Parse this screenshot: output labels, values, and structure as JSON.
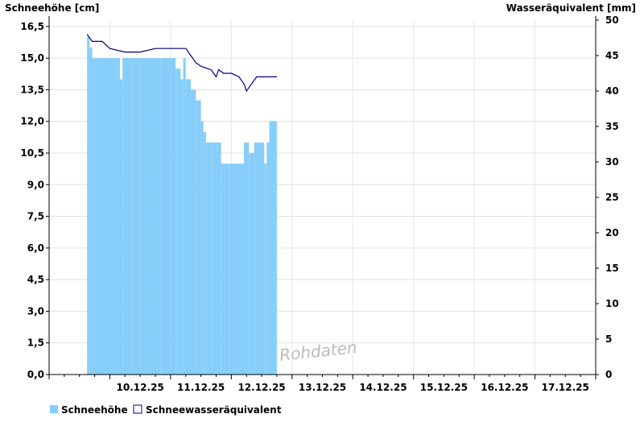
{
  "chart_data": {
    "type": "bar",
    "ylabel_left": "Schneehöhe [cm]",
    "ylabel_right": "Wasseräquivalent [mm]",
    "y_left_range": [
      0,
      16.8
    ],
    "y_right_range": [
      0,
      50
    ],
    "y_left_ticks": [
      "0,0",
      "1,5",
      "3,0",
      "4,5",
      "6,0",
      "7,5",
      "9,0",
      "10,5",
      "12,0",
      "13,5",
      "15,0",
      "16,5"
    ],
    "y_right_ticks": [
      "0",
      "5",
      "10",
      "15",
      "20",
      "25",
      "30",
      "35",
      "40",
      "45",
      "50"
    ],
    "x_range_days": [
      "09.12.25",
      "18.12.25"
    ],
    "x_tick_labels": [
      "10.12.25",
      "11.12.25",
      "12.12.25",
      "13.12.25",
      "14.12.25",
      "15.12.25",
      "16.12.25",
      "17.12.25"
    ],
    "grid": true,
    "series": [
      {
        "name": "Schneehöhe",
        "type": "bar",
        "axis": "left",
        "color": "#87CEFA",
        "points": [
          [
            "09.12.25 15:00",
            16.0
          ],
          [
            "09.12.25 16:00",
            15.5
          ],
          [
            "09.12.25 17:00",
            15.0
          ],
          [
            "09.12.25 18:00",
            15.0
          ],
          [
            "09.12.25 21:00",
            15.0
          ],
          [
            "10.12.25 00:00",
            15.0
          ],
          [
            "10.12.25 03:00",
            15.0
          ],
          [
            "10.12.25 04:00",
            14.0
          ],
          [
            "10.12.25 05:00",
            15.0
          ],
          [
            "10.12.25 09:00",
            15.0
          ],
          [
            "10.12.25 12:00",
            15.0
          ],
          [
            "10.12.25 16:00",
            15.0
          ],
          [
            "10.12.25 20:00",
            15.0
          ],
          [
            "11.12.25 00:00",
            15.0
          ],
          [
            "11.12.25 02:00",
            14.5
          ],
          [
            "11.12.25 04:00",
            14.0
          ],
          [
            "11.12.25 05:00",
            15.0
          ],
          [
            "11.12.25 06:00",
            14.0
          ],
          [
            "11.12.25 08:00",
            13.5
          ],
          [
            "11.12.25 10:00",
            13.0
          ],
          [
            "11.12.25 12:00",
            12.0
          ],
          [
            "11.12.25 13:00",
            11.5
          ],
          [
            "11.12.25 14:00",
            11.0
          ],
          [
            "11.12.25 16:00",
            11.0
          ],
          [
            "11.12.25 18:00",
            11.0
          ],
          [
            "11.12.25 20:00",
            10.0
          ],
          [
            "11.12.25 23:00",
            10.0
          ],
          [
            "12.12.25 02:00",
            10.0
          ],
          [
            "12.12.25 05:00",
            11.0
          ],
          [
            "12.12.25 07:00",
            10.5
          ],
          [
            "12.12.25 09:00",
            11.0
          ],
          [
            "12.12.25 11:00",
            11.0
          ],
          [
            "12.12.25 13:00",
            10.0
          ],
          [
            "12.12.25 14:00",
            11.0
          ],
          [
            "12.12.25 15:00",
            12.0
          ],
          [
            "12.12.25 18:00",
            12.0
          ]
        ]
      },
      {
        "name": "Schneewasseräquivalent",
        "type": "line",
        "axis": "right",
        "color": "#000080",
        "points": [
          [
            "09.12.25 15:00",
            48.0
          ],
          [
            "09.12.25 17:00",
            47.0
          ],
          [
            "09.12.25 21:00",
            47.0
          ],
          [
            "10.12.25 00:00",
            46.0
          ],
          [
            "10.12.25 06:00",
            45.5
          ],
          [
            "10.12.25 12:00",
            45.5
          ],
          [
            "10.12.25 18:00",
            46.0
          ],
          [
            "11.12.25 00:00",
            46.0
          ],
          [
            "11.12.25 06:00",
            46.0
          ],
          [
            "11.12.25 08:00",
            45.0
          ],
          [
            "11.12.25 10:00",
            44.0
          ],
          [
            "11.12.25 12:00",
            43.5
          ],
          [
            "11.12.25 16:00",
            43.0
          ],
          [
            "11.12.25 18:00",
            42.0
          ],
          [
            "11.12.25 19:00",
            43.0
          ],
          [
            "11.12.25 21:00",
            42.5
          ],
          [
            "12.12.25 00:00",
            42.5
          ],
          [
            "12.12.25 03:00",
            42.0
          ],
          [
            "12.12.25 05:00",
            41.0
          ],
          [
            "12.12.25 06:00",
            40.0
          ],
          [
            "12.12.25 08:00",
            41.0
          ],
          [
            "12.12.25 10:00",
            42.0
          ],
          [
            "12.12.25 18:00",
            42.0
          ]
        ]
      }
    ],
    "legend_position": "bottom-left",
    "annotation": "Rohdaten"
  }
}
